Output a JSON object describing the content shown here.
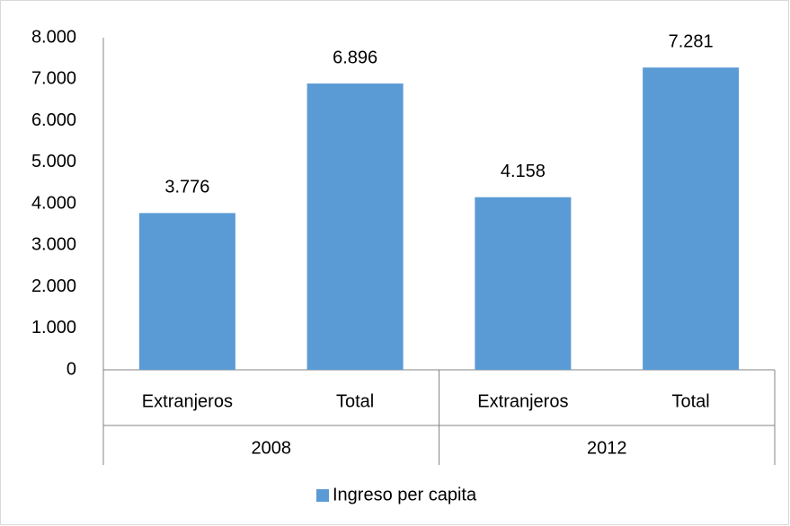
{
  "chart_data": {
    "type": "bar",
    "categories": [
      "Extranjeros",
      "Total",
      "Extranjeros",
      "Total"
    ],
    "groups": [
      "2008",
      "2012"
    ],
    "series": [
      {
        "name": "Ingreso per capita",
        "color": "#5b9bd5",
        "values": [
          3776,
          6896,
          4158,
          7281
        ],
        "value_labels": [
          "3.776",
          "6.896",
          "4.158",
          "7.281"
        ]
      }
    ],
    "ylim": [
      0,
      8000
    ],
    "yticks": [
      0,
      {
        "value": 1000,
        "label": "1.000"
      },
      {
        "value": 2000,
        "label": "2.000"
      },
      {
        "value": 3000,
        "label": "3.000"
      },
      {
        "value": 4000,
        "label": "4.000"
      },
      {
        "value": 5000,
        "label": "5.000"
      },
      {
        "value": 6000,
        "label": "6.000"
      },
      {
        "value": 7000,
        "label": "7.000"
      },
      {
        "value": 8000,
        "label": "8.000"
      }
    ],
    "grid": false,
    "legend": "bottom"
  }
}
